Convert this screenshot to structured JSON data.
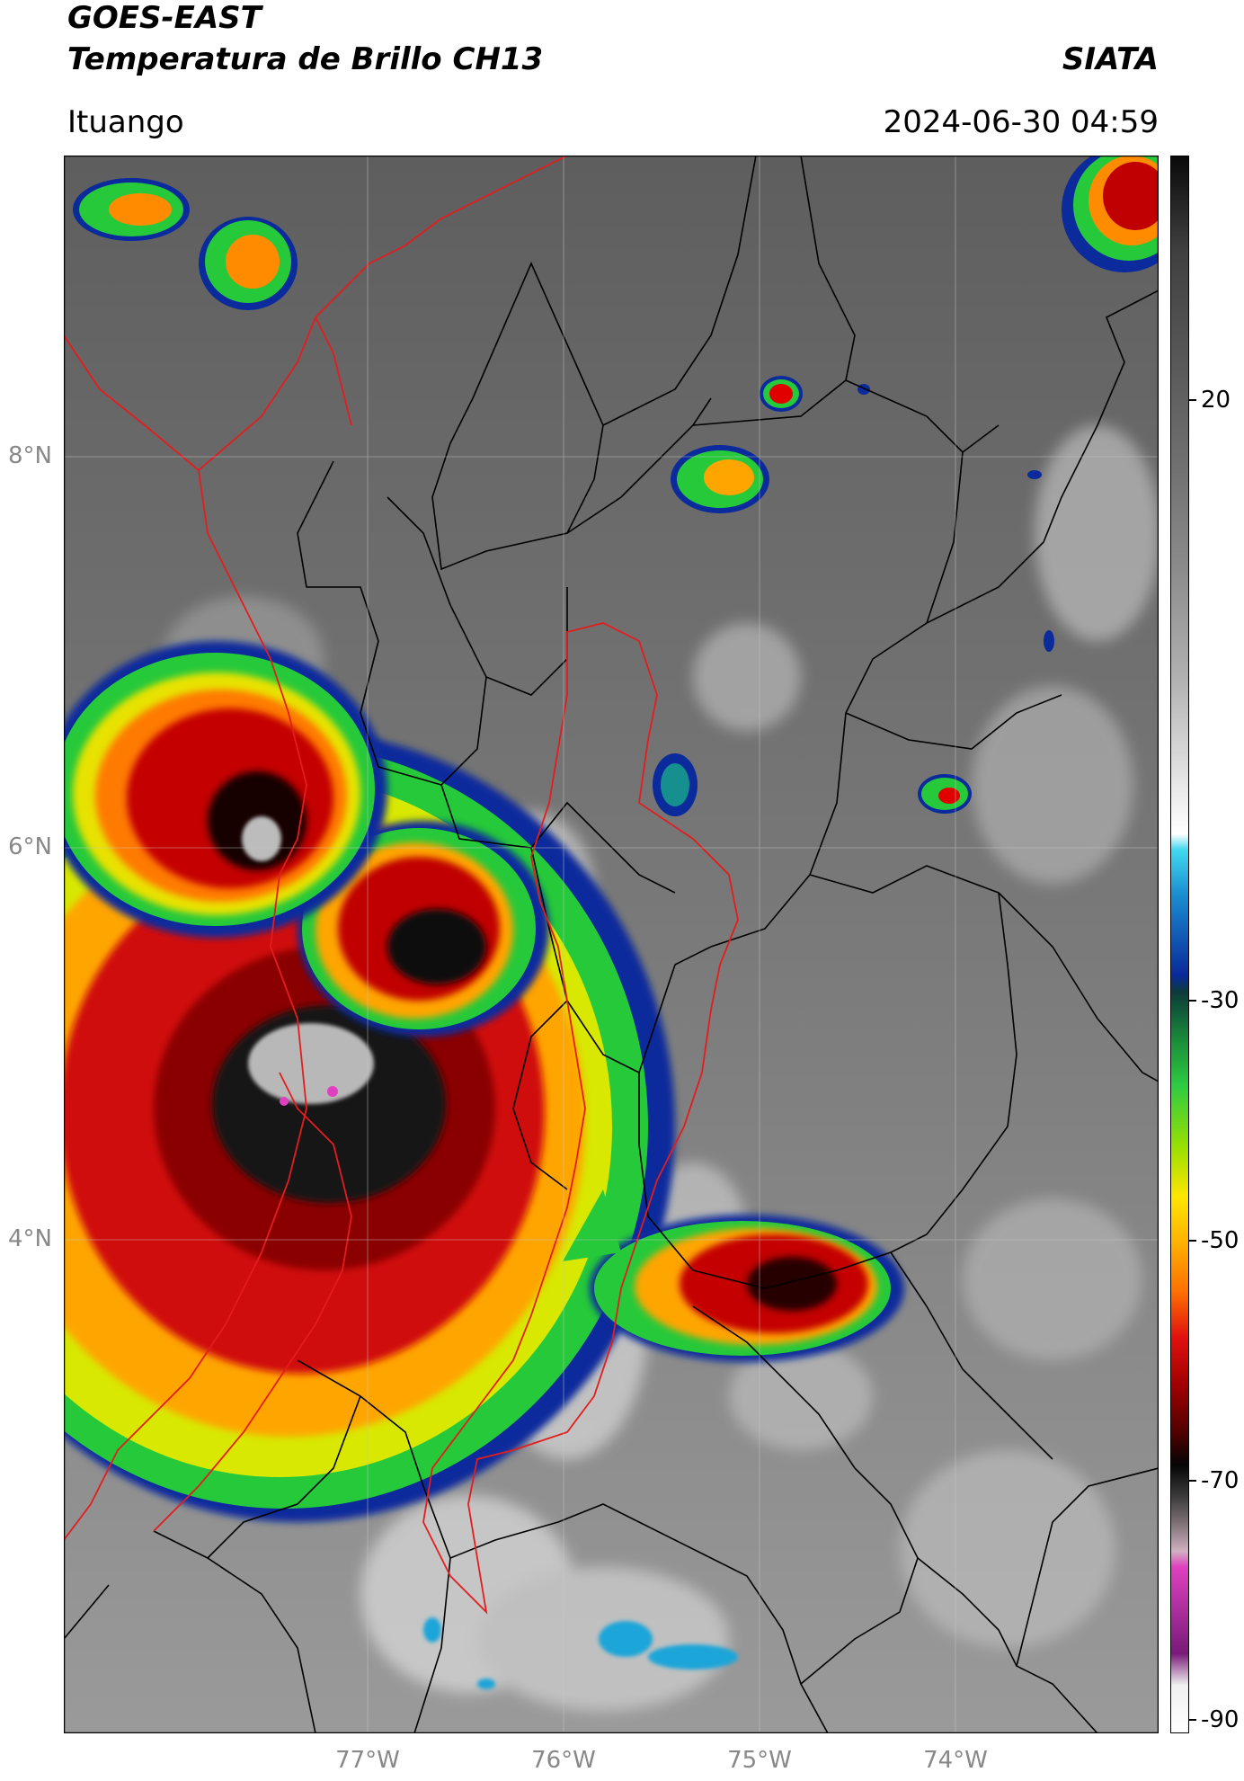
{
  "header": {
    "line1": "GOES-EAST",
    "line2": "Temperatura de Brillo CH13",
    "brand": "SIATA",
    "location": "Ituango",
    "timestamp": "2024-06-30 04:59"
  },
  "map": {
    "lat_labels": [
      "8°N",
      "6°N",
      "4°N"
    ],
    "lon_labels": [
      "77°W",
      "76°W",
      "75°W",
      "74°W"
    ],
    "storm_cells": [
      {
        "name": "large-convective-system-southwest",
        "lon": -76.9,
        "lat": 4.3
      },
      {
        "name": "convective-cell-central-west",
        "lon": -76.7,
        "lat": 5.4
      },
      {
        "name": "convective-cell-northwest",
        "lon": -77.5,
        "lat": 5.9
      },
      {
        "name": "convective-cell-southeast",
        "lon": -75.0,
        "lat": 3.9
      },
      {
        "name": "convective-cell-north-small",
        "lon": -75.3,
        "lat": 7.9
      },
      {
        "name": "convective-cell-top-left",
        "lon": -77.6,
        "lat": 9.0
      },
      {
        "name": "convective-cell-top-right",
        "lon": -73.1,
        "lat": 9.2
      }
    ]
  },
  "colorbar": {
    "title": "",
    "ticks": [
      "20",
      "-30",
      "-50",
      "-70",
      "-90"
    ],
    "colors": {
      "warm_grey": "#6f6f6f",
      "white": "#f5f5f5",
      "cyan": "#20b8e0",
      "blue": "#0a2a9a",
      "green": "#2ecc40",
      "yellow": "#ffe600",
      "orange": "#ff8c00",
      "red": "#d40000",
      "dark_red": "#5a0000",
      "black": "#050505",
      "magenta": "#d040c0"
    }
  }
}
